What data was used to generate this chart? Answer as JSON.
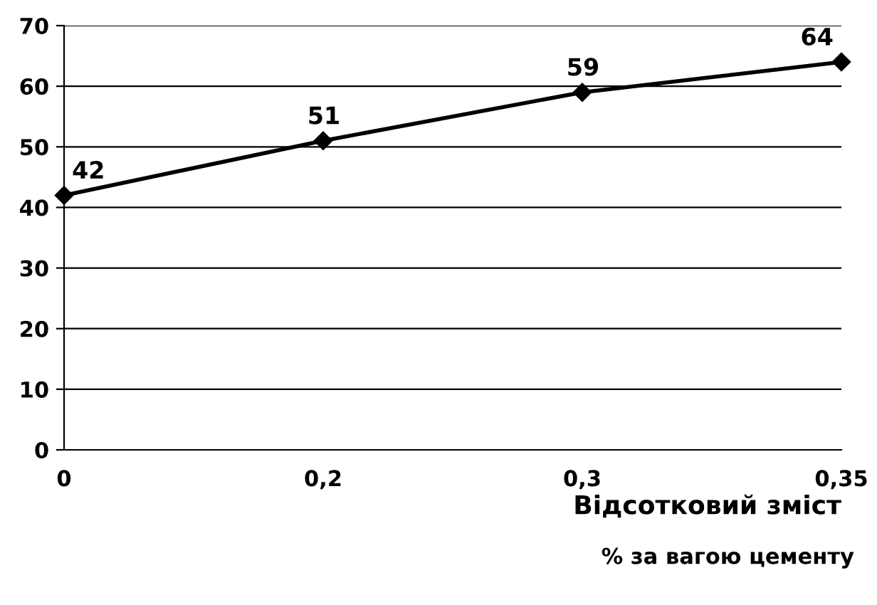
{
  "chart_data": {
    "type": "line",
    "xlabel": "Відсотковий зміст",
    "annotations": [
      "% за вагою цементу"
    ],
    "categories": [
      "0",
      "0,2",
      "0,3",
      "0,35"
    ],
    "series": [
      {
        "color": "#000000",
        "values": [
          42,
          51,
          59,
          64
        ]
      }
    ],
    "ylim": [
      0,
      70
    ],
    "yticks": [
      0,
      10,
      20,
      30,
      40,
      50,
      60,
      70
    ],
    "grid": "y",
    "marker": "diamond",
    "line_style": "solid",
    "data_labels": true
  }
}
